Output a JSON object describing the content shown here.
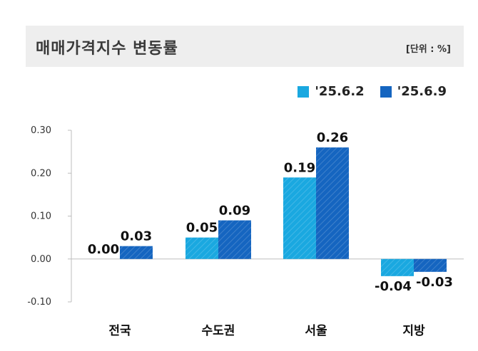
{
  "header": {
    "title": "매매가격지수 변동률",
    "unit": "[단위 : %]"
  },
  "chart_data": {
    "type": "bar",
    "title": "매매가격지수 변동률",
    "categories": [
      "전국",
      "수도권",
      "서울",
      "지방"
    ],
    "series": [
      {
        "name": "'25.6.2",
        "values": [
          0.0,
          0.05,
          0.19,
          -0.04
        ],
        "color": "#1aa8e0"
      },
      {
        "name": "'25.6.9",
        "values": [
          0.03,
          0.09,
          0.26,
          -0.03
        ],
        "color": "#1565c0"
      }
    ],
    "value_labels": [
      [
        "0.00",
        "0.05",
        "0.19",
        "-0.04"
      ],
      [
        "0.03",
        "0.09",
        "0.26",
        "-0.03"
      ]
    ],
    "yticks": [
      "0.30",
      "0.20",
      "0.10",
      "0.00",
      "-0.10"
    ],
    "ylim": [
      -0.1,
      0.3
    ],
    "legend_position": "top-right",
    "grid": false
  }
}
